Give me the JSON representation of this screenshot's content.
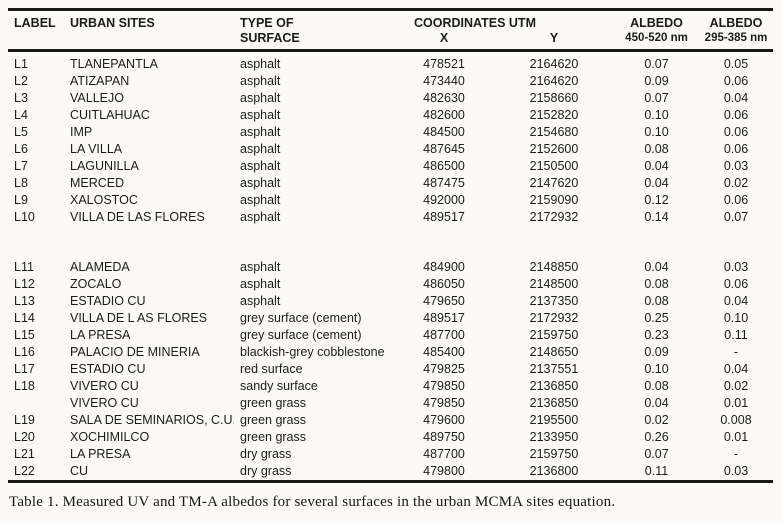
{
  "colors": {
    "background": "#fbfaf7",
    "text": "#1c1c1c",
    "rule": "#171717"
  },
  "table": {
    "caption": "Table 1. Measured UV and TM-A albedos for several surfaces in the urban MCMA sites equation.",
    "headers": {
      "label": "LABEL",
      "sites": "URBAN SITES",
      "surface_line1": "TYPE OF",
      "surface_line2": "SURFACE",
      "coordinates": "COORDINATES UTM",
      "x": "X",
      "y": "Y",
      "albedo1_line1": "ALBEDO",
      "albedo1_line2": "450-520 nm",
      "albedo2_line1": "ALBEDO",
      "albedo2_line2": "295-385 nm"
    },
    "groups": [
      {
        "rows": [
          {
            "label": "L1",
            "site": "TLANEPANTLA",
            "surface": "asphalt",
            "x": "478521",
            "y": "2164620",
            "albedo_450_520": "0.07",
            "albedo_295_385": "0.05"
          },
          {
            "label": "L2",
            "site": "ATIZAPAN",
            "surface": "asphalt",
            "x": "473440",
            "y": "2164620",
            "albedo_450_520": "0.09",
            "albedo_295_385": "0.06"
          },
          {
            "label": "L3",
            "site": "VALLEJO",
            "surface": "asphalt",
            "x": "482630",
            "y": "2158660",
            "albedo_450_520": "0.07",
            "albedo_295_385": "0.04"
          },
          {
            "label": "L4",
            "site": "CUITLAHUAC",
            "surface": "asphalt",
            "x": "482600",
            "y": "2152820",
            "albedo_450_520": "0.10",
            "albedo_295_385": "0.06"
          },
          {
            "label": "L5",
            "site": "IMP",
            "surface": "asphalt",
            "x": "484500",
            "y": "2154680",
            "albedo_450_520": "0.10",
            "albedo_295_385": "0.06"
          },
          {
            "label": "L6",
            "site": "LA VILLA",
            "surface": "asphalt",
            "x": "487645",
            "y": "2152600",
            "albedo_450_520": "0.08",
            "albedo_295_385": "0.06"
          },
          {
            "label": "L7",
            "site": "LAGUNILLA",
            "surface": "asphalt",
            "x": "486500",
            "y": "2150500",
            "albedo_450_520": "0.04",
            "albedo_295_385": "0.03"
          },
          {
            "label": "L8",
            "site": "MERCED",
            "surface": "asphalt",
            "x": "487475",
            "y": "2147620",
            "albedo_450_520": "0.04",
            "albedo_295_385": "0.02"
          },
          {
            "label": "L9",
            "site": "XALOSTOC",
            "surface": "asphalt",
            "x": "492000",
            "y": "2159090",
            "albedo_450_520": "0.12",
            "albedo_295_385": "0.06"
          },
          {
            "label": "L10",
            "site": "VILLA DE LAS FLORES",
            "surface": "asphalt",
            "x": "489517",
            "y": "2172932",
            "albedo_450_520": "0.14",
            "albedo_295_385": "0.07"
          }
        ]
      },
      {
        "rows": [
          {
            "label": "L11",
            "site": "ALAMEDA",
            "surface": "asphalt",
            "x": "484900",
            "y": "2148850",
            "albedo_450_520": "0.04",
            "albedo_295_385": "0.03"
          },
          {
            "label": "L12",
            "site": "ZOCALO",
            "surface": "asphalt",
            "x": "486050",
            "y": "2148500",
            "albedo_450_520": "0.08",
            "albedo_295_385": "0.06"
          },
          {
            "label": "L13",
            "site": "ESTADIO CU",
            "surface": "asphalt",
            "x": "479650",
            "y": "2137350",
            "albedo_450_520": "0.08",
            "albedo_295_385": "0.04"
          },
          {
            "label": "L14",
            "site": "VILLA DE L AS FLORES",
            "surface": "grey surface (cement)",
            "x": "489517",
            "y": "2172932",
            "albedo_450_520": "0.25",
            "albedo_295_385": "0.10"
          },
          {
            "label": "L15",
            "site": "LA PRESA",
            "surface": "grey surface (cement)",
            "x": "487700",
            "y": "2159750",
            "albedo_450_520": "0.23",
            "albedo_295_385": "0.11"
          },
          {
            "label": "L16",
            "site": "PALACIO DE MINERIA",
            "surface": "blackish-grey cobblestone",
            "x": "485400",
            "y": "2148650",
            "albedo_450_520": "0.09",
            "albedo_295_385": "-"
          },
          {
            "label": "L17",
            "site": "ESTADIO CU",
            "surface": "red surface",
            "x": "479825",
            "y": "2137551",
            "albedo_450_520": "0.10",
            "albedo_295_385": "0.04"
          },
          {
            "label": "L18",
            "site": "VIVERO CU",
            "surface": "sandy surface",
            "x": "479850",
            "y": "2136850",
            "albedo_450_520": "0.08",
            "albedo_295_385": "0.02"
          },
          {
            "label": "",
            "site": "VIVERO CU",
            "surface": "green grass",
            "x": "479850",
            "y": "2136850",
            "albedo_450_520": "0.04",
            "albedo_295_385": "0.01"
          },
          {
            "label": "L19",
            "site": "SALA DE SEMINARIOS, C.U.",
            "surface": "green grass",
            "x": "479600",
            "y": "2195500",
            "albedo_450_520": "0.02",
            "albedo_295_385": "0.008"
          },
          {
            "label": "L20",
            "site": "XOCHIMILCO",
            "surface": "green grass",
            "x": "489750",
            "y": "2133950",
            "albedo_450_520": "0.26",
            "albedo_295_385": "0.01"
          },
          {
            "label": "L21",
            "site": "LA PRESA",
            "surface": "dry grass",
            "x": "487700",
            "y": "2159750",
            "albedo_450_520": "0.07",
            "albedo_295_385": "-"
          },
          {
            "label": "L22",
            "site": "CU",
            "surface": "dry grass",
            "x": "479800",
            "y": "2136800",
            "albedo_450_520": "0.11",
            "albedo_295_385": "0.03"
          }
        ]
      }
    ]
  }
}
